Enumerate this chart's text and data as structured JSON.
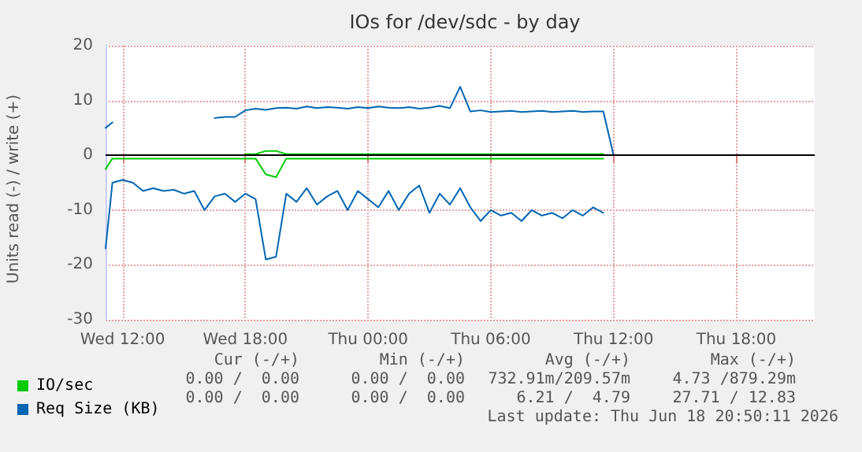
{
  "chart_data": {
    "type": "line",
    "title": "IOs for /dev/sdc - by day",
    "ylabel": "Units read (-) / write (+)",
    "x": [
      "2026-06-17T11:10",
      "2026-06-17T11:30",
      "2026-06-17T12:00",
      "2026-06-17T12:30",
      "2026-06-17T13:00",
      "2026-06-17T13:30",
      "2026-06-17T14:00",
      "2026-06-17T14:30",
      "2026-06-17T15:00",
      "2026-06-17T15:30",
      "2026-06-17T16:00",
      "2026-06-17T16:30",
      "2026-06-17T17:00",
      "2026-06-17T17:30",
      "2026-06-17T18:00",
      "2026-06-17T18:30",
      "2026-06-17T19:00",
      "2026-06-17T19:30",
      "2026-06-17T20:00",
      "2026-06-17T20:30",
      "2026-06-17T21:00",
      "2026-06-17T21:30",
      "2026-06-17T22:00",
      "2026-06-17T22:30",
      "2026-06-17T23:00",
      "2026-06-17T23:30",
      "2026-06-18T00:00",
      "2026-06-18T00:30",
      "2026-06-18T01:00",
      "2026-06-18T01:30",
      "2026-06-18T02:00",
      "2026-06-18T02:30",
      "2026-06-18T03:00",
      "2026-06-18T03:30",
      "2026-06-18T04:00",
      "2026-06-18T04:30",
      "2026-06-18T05:00",
      "2026-06-18T05:30",
      "2026-06-18T06:00",
      "2026-06-18T06:30",
      "2026-06-18T07:00",
      "2026-06-18T07:30",
      "2026-06-18T08:00",
      "2026-06-18T08:30",
      "2026-06-18T09:00",
      "2026-06-18T09:30",
      "2026-06-18T10:00",
      "2026-06-18T10:30",
      "2026-06-18T11:00",
      "2026-06-18T11:30",
      "2026-06-18T12:00"
    ],
    "series": [
      {
        "name": "IO/sec",
        "color": "#00cc00",
        "values": [
          null,
          null,
          null,
          null,
          null,
          null,
          null,
          null,
          null,
          null,
          null,
          null,
          null,
          null,
          0.2,
          0.2,
          0.8,
          0.8,
          0.2,
          0.2,
          0.2,
          0.2,
          0.2,
          0.2,
          0.2,
          0.2,
          0.2,
          0.2,
          0.2,
          0.2,
          0.2,
          0.2,
          0.2,
          0.2,
          0.2,
          0.2,
          0.2,
          0.2,
          0.2,
          0.2,
          0.2,
          0.2,
          0.2,
          0.2,
          0.2,
          0.2,
          0.2,
          0.2,
          0.2,
          0.2,
          null
        ]
      },
      {
        "color": "#00cc00",
        "values": [
          -2.5,
          -0.6,
          -0.6,
          -0.6,
          -0.6,
          -0.6,
          -0.6,
          -0.6,
          -0.6,
          -0.6,
          -0.6,
          -0.6,
          -0.6,
          -0.6,
          -0.6,
          -0.6,
          -3.5,
          -4,
          -0.6,
          -0.6,
          -0.6,
          -0.6,
          -0.6,
          -0.6,
          -0.6,
          -0.6,
          -0.6,
          -0.6,
          -0.6,
          -0.6,
          -0.6,
          -0.6,
          -0.6,
          -0.6,
          -0.6,
          -0.6,
          -0.6,
          -0.6,
          -0.6,
          -0.6,
          -0.6,
          -0.6,
          -0.6,
          -0.6,
          -0.6,
          -0.6,
          -0.6,
          -0.6,
          -0.6,
          -0.6,
          null
        ]
      },
      {
        "name": "Req Size (KB)",
        "color": "#0066b3",
        "values": [
          5,
          6,
          null,
          null,
          null,
          null,
          null,
          null,
          null,
          null,
          null,
          6.8,
          7,
          7,
          8.2,
          8.5,
          8.3,
          8.6,
          8.7,
          8.5,
          8.9,
          8.6,
          8.8,
          8.7,
          8.5,
          8.8,
          8.6,
          8.9,
          8.7,
          8.6,
          8.8,
          8.5,
          8.7,
          9,
          8.6,
          12.5,
          8,
          8.2,
          7.9,
          8,
          8.1,
          7.9,
          8,
          8.1,
          7.9,
          8,
          8.1,
          7.9,
          8,
          8,
          0
        ]
      },
      {
        "color": "#0066b3",
        "values": [
          -17,
          -5,
          -4.5,
          -5,
          -6.5,
          -6,
          -6.5,
          -6.3,
          -7,
          -6.5,
          -10,
          -7.5,
          -7,
          -8.5,
          -7,
          -8,
          -19,
          -18.5,
          -7,
          -8.5,
          -6,
          -9,
          -7.5,
          -6.5,
          -10,
          -6.5,
          -8,
          -9.5,
          -6.5,
          -10,
          -7,
          -5.5,
          -10.5,
          -7,
          -9,
          -6,
          -9.5,
          -12,
          -10,
          -11,
          -10.5,
          -12,
          -10,
          -11,
          -10.5,
          -11.5,
          -10,
          -11,
          -9.5,
          -10.5,
          null
        ]
      }
    ],
    "xlim": [
      "2026-06-17T11:10",
      "2026-06-18T21:50"
    ],
    "xticks": [
      {
        "value": "2026-06-17T12:00",
        "label": "Wed 12:00"
      },
      {
        "value": "2026-06-17T18:00",
        "label": "Wed 18:00"
      },
      {
        "value": "2026-06-18T00:00",
        "label": "Thu 00:00"
      },
      {
        "value": "2026-06-18T06:00",
        "label": "Thu 06:00"
      },
      {
        "value": "2026-06-18T12:00",
        "label": "Thu 12:00"
      },
      {
        "value": "2026-06-18T18:00",
        "label": "Thu 18:00"
      }
    ],
    "ylim": [
      -30,
      20
    ],
    "yticks": [
      -30,
      -20,
      -10,
      0,
      10,
      20
    ],
    "grid": true,
    "legend": "bottom left",
    "marker": "none",
    "line_style": "solid",
    "ref_lines": [
      {
        "axis": "y",
        "value": 0,
        "color": "#000000"
      }
    ],
    "annotations": [
      "Cur (-/+)",
      "Min (-/+)",
      "Avg (-/+)",
      "Max (-/+)",
      "0.00 /  0.00",
      "0.00 /  0.00",
      "732.91m/209.57m",
      "4.73 /879.29m",
      "0.00 /  0.00",
      "0.00 /  0.00",
      "6.21 /  4.79",
      "27.71 / 12.83",
      "Last update: Thu Jun 18 20:50:11 2026"
    ]
  }
}
